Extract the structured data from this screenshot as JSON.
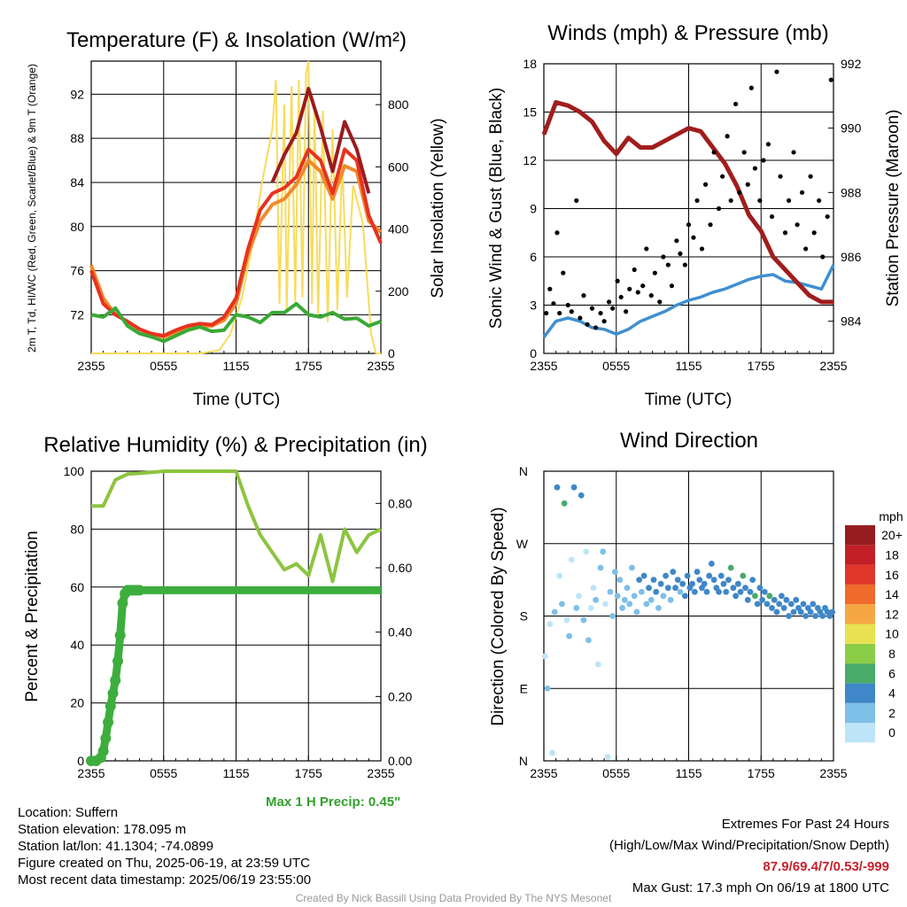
{
  "chart_data": [
    {
      "type": "line",
      "title": "Temperature (F) & Insolation (W/m²)",
      "xlabel": "Time (UTC)",
      "ylabel": "2m T, Td, HI/WC (Red, Green, Scarlet/Blue) & 9m T (Orange)",
      "ylabel_right": "Solar Insolation (Yellow)",
      "x_ticks": [
        "2355",
        "0555",
        "1155",
        "1755",
        "2355"
      ],
      "y_ticks": [
        72,
        76,
        80,
        84,
        88,
        92
      ],
      "ylim": [
        68.5,
        95
      ],
      "y2_ticks": [
        0,
        200,
        400,
        600,
        800
      ],
      "y2lim": [
        0,
        940
      ],
      "x_hours": [
        0,
        1,
        2,
        3,
        4,
        5,
        6,
        7,
        8,
        9,
        10,
        11,
        12,
        13,
        14,
        15,
        16,
        17,
        18,
        19,
        20,
        21,
        22,
        23,
        24
      ],
      "series": [
        {
          "key": "t9m",
          "color": "#f08a2c",
          "values": [
            76.5,
            73.5,
            72.0,
            71.4,
            70.7,
            70.2,
            70.0,
            70.4,
            70.8,
            71.0,
            71.0,
            71.5,
            73.0,
            77.5,
            80.5,
            82.0,
            82.5,
            83.8,
            86.0,
            85.0,
            82.5,
            85.5,
            85.0,
            80.5,
            79.5
          ]
        },
        {
          "key": "t2m",
          "color": "#e8321e",
          "values": [
            76.0,
            73.0,
            72.0,
            71.4,
            70.7,
            70.3,
            70.1,
            70.6,
            71.0,
            71.2,
            71.1,
            71.8,
            73.5,
            78.0,
            81.5,
            83.0,
            83.5,
            84.5,
            87.0,
            86.0,
            83.0,
            87.0,
            86.0,
            81.0,
            78.5
          ]
        },
        {
          "key": "heatindex",
          "color": "#9a1b1f",
          "values": [
            null,
            null,
            null,
            null,
            null,
            null,
            null,
            null,
            null,
            null,
            null,
            null,
            null,
            null,
            null,
            84.0,
            86.5,
            88.5,
            92.5,
            89.0,
            85.0,
            89.5,
            87.0,
            83.0,
            null
          ]
        },
        {
          "key": "dewpoint",
          "color": "#3aa935",
          "values": [
            72.0,
            71.8,
            72.6,
            71.0,
            70.3,
            70.0,
            69.6,
            70.1,
            70.6,
            70.9,
            70.5,
            70.6,
            72.0,
            71.8,
            71.3,
            72.2,
            72.2,
            73.0,
            72.0,
            71.8,
            72.2,
            71.6,
            71.7,
            71.0,
            71.4
          ]
        }
      ],
      "insolation": [
        {
          "h": 0,
          "v": 0
        },
        {
          "h": 9,
          "v": 0
        },
        {
          "h": 10.6,
          "v": 10
        },
        {
          "h": 11.5,
          "v": 60
        },
        {
          "h": 12.5,
          "v": 180
        },
        {
          "h": 13.2,
          "v": 320
        },
        {
          "h": 14.2,
          "v": 560
        },
        {
          "h": 15,
          "v": 720
        },
        {
          "h": 15.3,
          "v": 880
        },
        {
          "h": 15.6,
          "v": 160
        },
        {
          "h": 16,
          "v": 800
        },
        {
          "h": 16.2,
          "v": 140
        },
        {
          "h": 16.6,
          "v": 860
        },
        {
          "h": 16.9,
          "v": 160
        },
        {
          "h": 17.2,
          "v": 880
        },
        {
          "h": 17.5,
          "v": 180
        },
        {
          "h": 17.8,
          "v": 900
        },
        {
          "h": 18,
          "v": 940
        },
        {
          "h": 18.3,
          "v": 160
        },
        {
          "h": 18.5,
          "v": 800
        },
        {
          "h": 18.8,
          "v": 120
        },
        {
          "h": 19.2,
          "v": 780
        },
        {
          "h": 19.6,
          "v": 100
        },
        {
          "h": 20,
          "v": 720
        },
        {
          "h": 20.4,
          "v": 140
        },
        {
          "h": 20.8,
          "v": 620
        },
        {
          "h": 21.2,
          "v": 180
        },
        {
          "h": 21.7,
          "v": 540
        },
        {
          "h": 22.5,
          "v": 420
        },
        {
          "h": 23.2,
          "v": 60
        },
        {
          "h": 23.6,
          "v": 0
        },
        {
          "h": 24,
          "v": 0
        }
      ]
    },
    {
      "type": "line",
      "title": "Winds (mph) & Pressure (mb)",
      "xlabel": "Time (UTC)",
      "ylabel": "Sonic Wind & Gust (Blue, Black)",
      "ylabel_right": "Station Pressure (Maroon)",
      "x_ticks": [
        "2355",
        "0555",
        "1155",
        "1755",
        "2355"
      ],
      "y_ticks": [
        0,
        3,
        6,
        9,
        12,
        15,
        18
      ],
      "ylim": [
        0,
        18
      ],
      "y2_ticks": [
        984,
        986,
        988,
        990,
        992
      ],
      "y2lim": [
        983.0,
        992.0
      ],
      "x_hours": [
        0,
        1,
        2,
        3,
        4,
        5,
        6,
        7,
        8,
        9,
        10,
        11,
        12,
        13,
        14,
        15,
        16,
        17,
        18,
        19,
        20,
        21,
        22,
        23,
        24
      ],
      "pressure": {
        "color": "#a11d1d",
        "values": [
          989.8,
          990.8,
          990.7,
          990.5,
          990.2,
          989.6,
          989.2,
          989.7,
          989.4,
          989.4,
          989.6,
          989.8,
          990.0,
          989.9,
          989.4,
          988.9,
          988.2,
          987.3,
          986.8,
          986.0,
          985.6,
          985.2,
          984.8,
          984.6,
          984.6
        ]
      },
      "wind": {
        "color": "#3f8fd0",
        "values": [
          1.0,
          2.0,
          2.2,
          2.0,
          1.6,
          1.5,
          1.2,
          1.5,
          2.0,
          2.3,
          2.6,
          3.0,
          3.3,
          3.5,
          3.8,
          4.0,
          4.3,
          4.6,
          4.8,
          4.9,
          4.5,
          4.4,
          4.2,
          4.0,
          5.5
        ]
      },
      "gust": {
        "color": "#000000",
        "hours": [
          0.2,
          0.5,
          0.8,
          1.1,
          1.3,
          1.6,
          2.0,
          2.3,
          2.7,
          3.0,
          3.3,
          3.6,
          4.0,
          4.3,
          4.7,
          5.0,
          5.4,
          5.7,
          6.1,
          6.4,
          6.8,
          7.1,
          7.5,
          7.8,
          8.2,
          8.5,
          8.9,
          9.2,
          9.6,
          9.9,
          10.3,
          10.6,
          11.0,
          11.3,
          11.7,
          12.0,
          12.4,
          12.7,
          13.1,
          13.4,
          13.8,
          14.1,
          14.5,
          14.8,
          15.2,
          15.5,
          15.9,
          16.2,
          16.6,
          16.9,
          17.2,
          17.5,
          17.9,
          18.2,
          18.6,
          18.9,
          19.3,
          19.6,
          20.0,
          20.3,
          20.7,
          21.0,
          21.4,
          21.7,
          22.1,
          22.4,
          22.8,
          23.1,
          23.5,
          23.8
        ],
        "values": [
          2.5,
          4.0,
          3.1,
          7.5,
          2.5,
          5.0,
          3.0,
          2.6,
          9.5,
          2.2,
          3.6,
          1.8,
          2.8,
          1.6,
          2.5,
          2.0,
          3.2,
          2.8,
          4.5,
          3.5,
          2.6,
          4.0,
          5.2,
          3.8,
          4.2,
          6.5,
          3.6,
          5.0,
          3.2,
          6.0,
          5.5,
          4.2,
          7.0,
          6.2,
          5.5,
          8.0,
          7.2,
          9.5,
          6.5,
          10.5,
          8.0,
          12.5,
          9.0,
          11.0,
          13.5,
          9.5,
          15.5,
          10.0,
          12.5,
          10.5,
          16.5,
          11.5,
          9.5,
          12.0,
          13.0,
          8.5,
          17.5,
          11.0,
          7.5,
          9.5,
          12.5,
          8.0,
          10.0,
          6.5,
          11.0,
          7.5,
          9.5,
          6.0,
          8.5,
          17.0
        ]
      }
    },
    {
      "type": "line",
      "title": "Relative Humidity (%) & Precipitation (in)",
      "xlabel": "",
      "ylabel": "Percent & Precipitation",
      "x_ticks": [
        "2355",
        "0555",
        "1155",
        "1755",
        "2355"
      ],
      "y_ticks": [
        0,
        20,
        40,
        60,
        80,
        100
      ],
      "ylim": [
        0,
        100
      ],
      "y2_ticks": [
        "0.00",
        "0.20",
        "0.40",
        "0.60",
        "0.80"
      ],
      "y2lim": [
        0,
        0.9
      ],
      "x_hours": [
        0,
        1,
        2,
        3,
        4,
        5,
        6,
        7,
        8,
        9,
        10,
        11,
        12,
        13,
        14,
        15,
        16,
        17,
        18,
        19,
        20,
        21,
        22,
        23,
        24
      ],
      "rh": {
        "color": "#8cc43f",
        "values": [
          88,
          88,
          97,
          99,
          99.3,
          99.6,
          100,
          100,
          100,
          100,
          100,
          100,
          100,
          88,
          78,
          72,
          66,
          68,
          64,
          78,
          62,
          80,
          72,
          78,
          80
        ]
      },
      "precip": {
        "color": "#3dae3d",
        "hours": [
          0,
          0.4,
          0.8,
          1.0,
          1.2,
          1.4,
          1.6,
          1.8,
          2.0,
          2.2,
          2.4,
          2.6,
          2.8,
          3.0,
          3.2,
          3.4,
          3.6,
          3.8,
          4,
          5,
          6,
          7,
          8,
          9,
          10,
          11,
          12,
          13,
          14,
          15,
          16,
          17,
          18,
          19,
          20,
          21,
          22,
          23,
          24
        ],
        "values": [
          0,
          0,
          0.01,
          0.03,
          0.07,
          0.12,
          0.17,
          0.21,
          0.25,
          0.31,
          0.39,
          0.49,
          0.52,
          0.53,
          0.53,
          0.53,
          0.53,
          0.53,
          0.53,
          0.53,
          0.53,
          0.53,
          0.53,
          0.53,
          0.53,
          0.53,
          0.53,
          0.53,
          0.53,
          0.53,
          0.53,
          0.53,
          0.53,
          0.53,
          0.53,
          0.53,
          0.53,
          0.53,
          0.53
        ]
      },
      "annotation": "Max 1 H Precip: 0.45\""
    },
    {
      "type": "scatter",
      "title": "Wind Direction",
      "xlabel": "",
      "ylabel": "Direction (Colored By Speed)",
      "x_ticks": [
        "2355",
        "0555",
        "1155",
        "1755",
        "2355"
      ],
      "y_ticks": [
        "N",
        "E",
        "S",
        "W",
        "N"
      ],
      "ylim": [
        0,
        360
      ],
      "legend_title": "mph",
      "legend_labels": [
        "0",
        "2",
        "4",
        "6",
        "8",
        "10",
        "12",
        "14",
        "16",
        "18",
        "20+"
      ],
      "legend_colors": [
        "#bde4f7",
        "#7ebfe8",
        "#3f87c8",
        "#4aaa6a",
        "#8ccd48",
        "#e8e250",
        "#f6a743",
        "#f06b2c",
        "#e0362a",
        "#c22026",
        "#961c1f"
      ],
      "points": {
        "hours": [
          0.1,
          0.3,
          0.5,
          0.7,
          0.9,
          1.1,
          1.3,
          1.5,
          1.7,
          1.9,
          2.1,
          2.3,
          2.5,
          2.7,
          2.9,
          3.1,
          3.3,
          3.5,
          3.7,
          3.9,
          4.1,
          4.3,
          4.5,
          4.7,
          4.9,
          5.1,
          5.3,
          5.5,
          5.7,
          5.9,
          6.1,
          6.3,
          6.5,
          6.7,
          6.9,
          7.1,
          7.3,
          7.5,
          7.7,
          7.9,
          8.1,
          8.3,
          8.5,
          8.7,
          8.9,
          9.1,
          9.3,
          9.5,
          9.7,
          9.9,
          10.1,
          10.3,
          10.5,
          10.7,
          10.9,
          11.1,
          11.3,
          11.5,
          11.7,
          11.9,
          12.1,
          12.3,
          12.5,
          12.7,
          12.9,
          13.1,
          13.3,
          13.5,
          13.7,
          13.9,
          14.1,
          14.3,
          14.5,
          14.7,
          14.9,
          15.1,
          15.3,
          15.5,
          15.7,
          15.9,
          16.1,
          16.3,
          16.5,
          16.7,
          16.9,
          17.1,
          17.3,
          17.5,
          17.7,
          17.9,
          18.1,
          18.3,
          18.5,
          18.7,
          18.9,
          19.1,
          19.3,
          19.5,
          19.7,
          19.9,
          20.1,
          20.3,
          20.5,
          20.7,
          20.9,
          21.1,
          21.3,
          21.5,
          21.7,
          21.9,
          22.1,
          22.3,
          22.5,
          22.7,
          22.9,
          23.1,
          23.3,
          23.5,
          23.7,
          23.9
        ],
        "deg": [
          130,
          90,
          170,
          10,
          185,
          340,
          230,
          195,
          320,
          175,
          155,
          250,
          340,
          190,
          205,
          330,
          175,
          260,
          150,
          190,
          215,
          200,
          120,
          240,
          260,
          195,
          5,
          210,
          180,
          235,
          205,
          225,
          190,
          200,
          215,
          195,
          240,
          205,
          185,
          225,
          210,
          230,
          195,
          215,
          200,
          225,
          210,
          190,
          220,
          205,
          230,
          215,
          200,
          235,
          215,
          225,
          210,
          220,
          205,
          230,
          215,
          220,
          210,
          235,
          225,
          215,
          220,
          210,
          230,
          245,
          225,
          215,
          210,
          230,
          220,
          210,
          225,
          240,
          215,
          205,
          220,
          210,
          230,
          215,
          200,
          210,
          225,
          205,
          195,
          215,
          200,
          210,
          195,
          205,
          190,
          200,
          185,
          195,
          205,
          190,
          200,
          180,
          195,
          185,
          200,
          190,
          185,
          195,
          180,
          190,
          185,
          195,
          180,
          190,
          185,
          180,
          190,
          185,
          180,
          185
        ],
        "mph": [
          0,
          1,
          0,
          0,
          1,
          4,
          0,
          1,
          5,
          0,
          1,
          0,
          4,
          1,
          0,
          4,
          1,
          0,
          1,
          0,
          0,
          1,
          0,
          1,
          1,
          0,
          0,
          1,
          1,
          2,
          1,
          1,
          2,
          2,
          1,
          1,
          2,
          2,
          1,
          3,
          2,
          3,
          2,
          3,
          2,
          3,
          3,
          2,
          3,
          2,
          3,
          3,
          2,
          3,
          3,
          3,
          2,
          3,
          3,
          4,
          3,
          3,
          4,
          3,
          3,
          4,
          3,
          4,
          3,
          4,
          3,
          4,
          3,
          3,
          4,
          3,
          4,
          6,
          3,
          4,
          3,
          4,
          6,
          3,
          4,
          4,
          3,
          6,
          4,
          3,
          4,
          3,
          4,
          5,
          3,
          4,
          3,
          4,
          3,
          4,
          3,
          4,
          3,
          4,
          3,
          4,
          3,
          4,
          3,
          4,
          3,
          4,
          3,
          4,
          3,
          3,
          4,
          3,
          4,
          3
        ]
      }
    }
  ],
  "info": {
    "location": "Location: Suffern",
    "elevation": "Station elevation: 178.095 m",
    "latlon": "Station lat/lon: 41.1304; -74.0899",
    "created": "Figure created on Thu, 2025-06-19, at 23:59 UTC",
    "recent": "Most recent data timestamp: 2025/06/19 23:55:00"
  },
  "extremes": {
    "title": "Extremes For Past 24 Hours",
    "subtitle": "(High/Low/Max Wind/Precipitation/Snow Depth)",
    "values": "87.9/69.4/7/0.53/-999",
    "gust": "Max Gust: 17.3 mph On 06/19 at 1800 UTC"
  },
  "credit": "Created By Nick Bassill Using Data Provided By The NYS Mesonet"
}
